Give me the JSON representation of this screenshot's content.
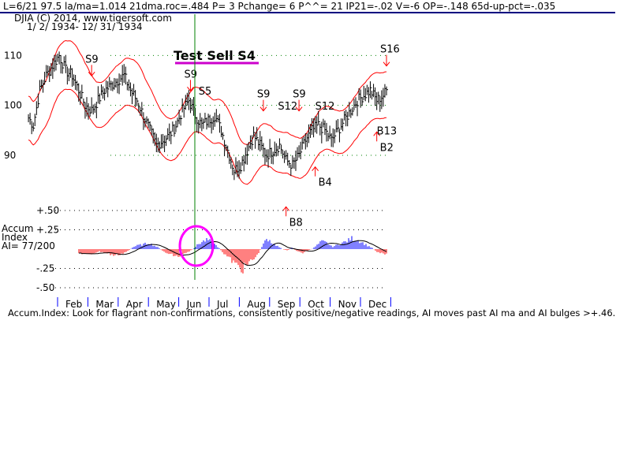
{
  "header": {
    "stats_line": "L=6/21   97.5   la/ma=1.014 21dma.roc=.484 P=   3 Pchange=  6 P^^= 21 IP21=-.02 V=-6 OP=-.148 65d-up-pct=-.035",
    "source_line": "DJIA   (C) 2014, www.tigersoft.com",
    "date_range": "1/ 2/ 1934- 12/ 31/ 1934"
  },
  "annotation_title": "Test Sell S4",
  "accum_label": [
    "Accum",
    "Index",
    "AI= 77/200"
  ],
  "footer_text": "Accum.Index: Look for flagrant non-confirmations, consistently positive/negative readings, AI moves past AI ma and AI bulges >+.46.",
  "colors": {
    "price_bars": "#000000",
    "bands": "#ff0000",
    "positive_ai": "#0000ff",
    "negative_ai": "#ff0000",
    "grid": "#008000",
    "marker_line": "#008000",
    "highlight": "#ff00ff",
    "title_underline": "#cc00cc",
    "header_rule": "#000080",
    "month_ticks": "#0000ff"
  },
  "chart_data": [
    {
      "type": "line",
      "name": "DJIA price with bands",
      "x": [
        "Feb",
        "Mar",
        "Apr",
        "May",
        "Jun",
        "Jul",
        "Aug",
        "Sep",
        "Oct",
        "Nov",
        "Dec"
      ],
      "y_ticks": [
        "110",
        "100",
        "90"
      ],
      "ylim": [
        84,
        114
      ],
      "price_path": [
        [
          1,
          97.5
        ],
        [
          4,
          96
        ],
        [
          8,
          103
        ],
        [
          12,
          106
        ],
        [
          16,
          108
        ],
        [
          20,
          110
        ],
        [
          24,
          107
        ],
        [
          28,
          106
        ],
        [
          32,
          103
        ],
        [
          36,
          100
        ],
        [
          40,
          99
        ],
        [
          44,
          101
        ],
        [
          48,
          103
        ],
        [
          52,
          104
        ],
        [
          56,
          105
        ],
        [
          60,
          106
        ],
        [
          64,
          103
        ],
        [
          68,
          101
        ],
        [
          72,
          98
        ],
        [
          76,
          95
        ],
        [
          80,
          92
        ],
        [
          84,
          93
        ],
        [
          88,
          94
        ],
        [
          92,
          96
        ],
        [
          96,
          99
        ],
        [
          100,
          101
        ],
        [
          104,
          98
        ],
        [
          108,
          96
        ],
        [
          112,
          97
        ],
        [
          116,
          98
        ],
        [
          120,
          95
        ],
        [
          124,
          91
        ],
        [
          128,
          87
        ],
        [
          132,
          88
        ],
        [
          136,
          91
        ],
        [
          140,
          94
        ],
        [
          144,
          92
        ],
        [
          148,
          90
        ],
        [
          152,
          91
        ],
        [
          156,
          92
        ],
        [
          160,
          89
        ],
        [
          164,
          88
        ],
        [
          168,
          90
        ],
        [
          172,
          93
        ],
        [
          176,
          95
        ],
        [
          180,
          96
        ],
        [
          184,
          95
        ],
        [
          188,
          93
        ],
        [
          192,
          95
        ],
        [
          196,
          97
        ],
        [
          200,
          99
        ],
        [
          204,
          101
        ],
        [
          208,
          102
        ],
        [
          212,
          103
        ],
        [
          216,
          101
        ],
        [
          220,
          102
        ],
        [
          222,
          103
        ]
      ],
      "signals": [
        {
          "label": "S9",
          "x": 40,
          "price": 104,
          "dir": "down"
        },
        {
          "label": "S9",
          "x": 101,
          "price": 101,
          "dir": "down"
        },
        {
          "label": "S5",
          "x": 106,
          "price": 99,
          "dir": "none"
        },
        {
          "label": "S9",
          "x": 146,
          "price": 97,
          "dir": "down"
        },
        {
          "label": "S12",
          "x": 155,
          "price": 96,
          "dir": "none"
        },
        {
          "label": "S9",
          "x": 168,
          "price": 97,
          "dir": "down"
        },
        {
          "label": "S12",
          "x": 178,
          "price": 96,
          "dir": "none"
        },
        {
          "label": "B4",
          "x": 178,
          "price": 88,
          "dir": "up"
        },
        {
          "label": "B8",
          "x": 160,
          "price": 80,
          "dir": "up"
        },
        {
          "label": "S16",
          "x": 222,
          "price": 106,
          "dir": "down"
        },
        {
          "label": "B2",
          "x": 216,
          "price": 95,
          "dir": "up"
        },
        {
          "label": "B13",
          "x": 216,
          "price": 91,
          "dir": "none"
        }
      ],
      "marker_date": "6/21"
    },
    {
      "type": "bar",
      "name": "Accumulation Index",
      "y_ticks": [
        "+.50",
        "+.25",
        "-.25",
        "-.50"
      ],
      "ylim": [
        -0.55,
        0.55
      ],
      "series": [
        {
          "values": [
            -0.05,
            -0.06,
            -0.08,
            -0.05,
            -0.03,
            -0.04,
            -0.06,
            -0.08,
            -0.07,
            -0.05,
            -0.02,
            0.03,
            0.05,
            0.06,
            0.08,
            0.05,
            0.02,
            -0.03,
            -0.06,
            -0.08,
            -0.1,
            -0.07,
            -0.04,
            0.0,
            0.06,
            0.1,
            0.12,
            0.08,
            0.03,
            -0.04,
            -0.1,
            -0.16,
            -0.22,
            -0.26,
            -0.2,
            -0.14,
            -0.08,
            0.05,
            0.14,
            0.08,
            0.04,
            0.0,
            -0.02,
            0.02,
            -0.03,
            -0.05,
            -0.02,
            0.0,
            0.05,
            0.1,
            0.08,
            0.03,
            0.05,
            0.08,
            0.1,
            0.14,
            0.12,
            0.09,
            0.05,
            0.02,
            -0.03,
            -0.05,
            -0.06
          ]
        }
      ]
    }
  ]
}
